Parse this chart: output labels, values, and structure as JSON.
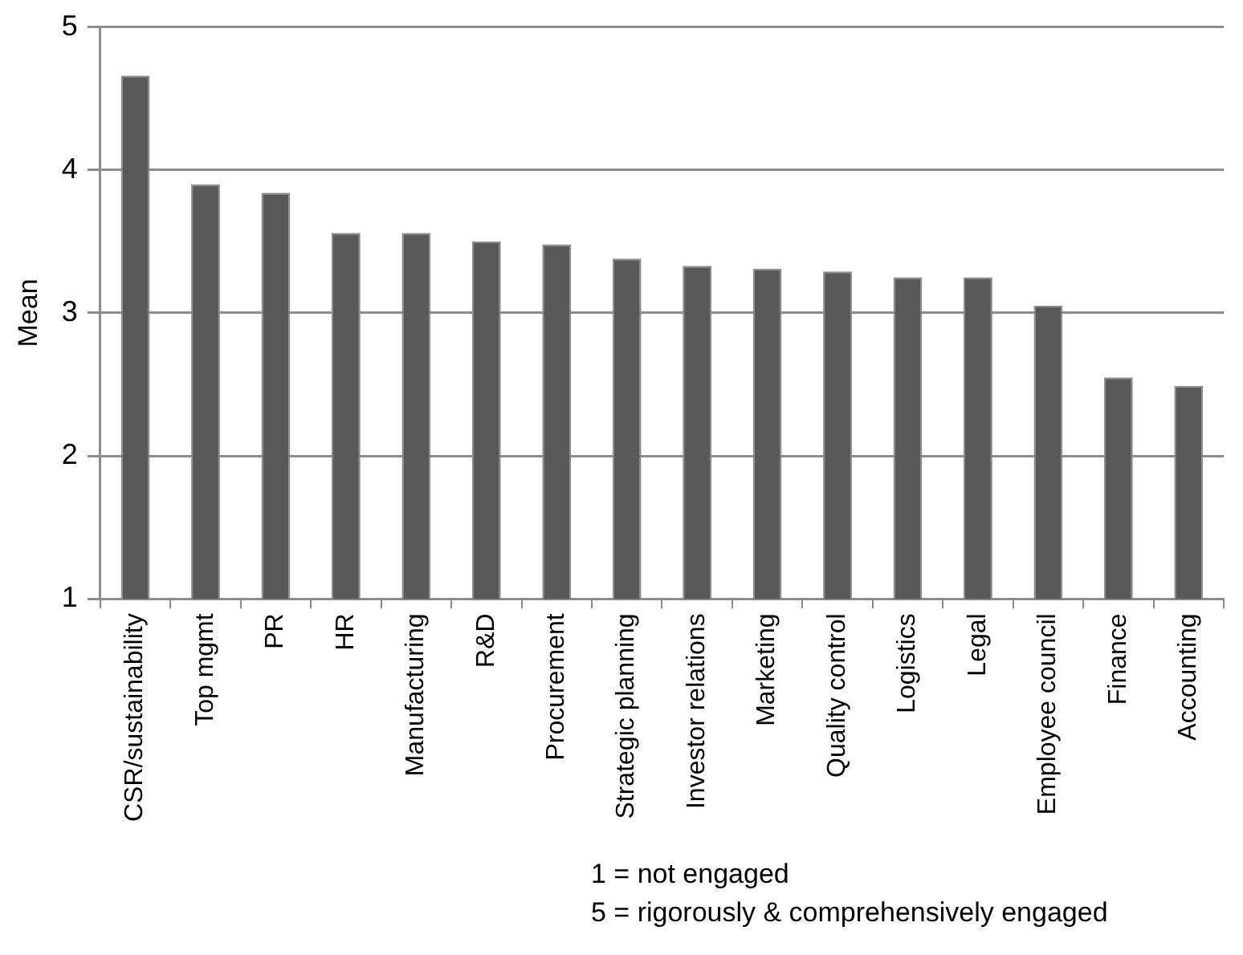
{
  "chart_data": {
    "type": "bar",
    "ylabel": "Mean",
    "categories": [
      "CSR/sustainability",
      "Top mgmt",
      "PR",
      "HR",
      "Manufacturing",
      "R&D",
      "Procurement",
      "Strategic planning",
      "Investor relations",
      "Marketing",
      "Quality control",
      "Logistics",
      "Legal",
      "Employee council",
      "Finance",
      "Accounting"
    ],
    "values": [
      4.66,
      3.9,
      3.84,
      3.56,
      3.56,
      3.5,
      3.48,
      3.38,
      3.33,
      3.31,
      3.29,
      3.25,
      3.25,
      3.05,
      2.55,
      2.49
    ],
    "color": "#595959",
    "ylim": [
      1,
      5
    ],
    "yticks": [
      1,
      2,
      3,
      4,
      5
    ],
    "grid": "y",
    "legend": false,
    "annotations": [
      "1 = not engaged",
      "5 = rigorously & comprehensively engaged"
    ]
  }
}
